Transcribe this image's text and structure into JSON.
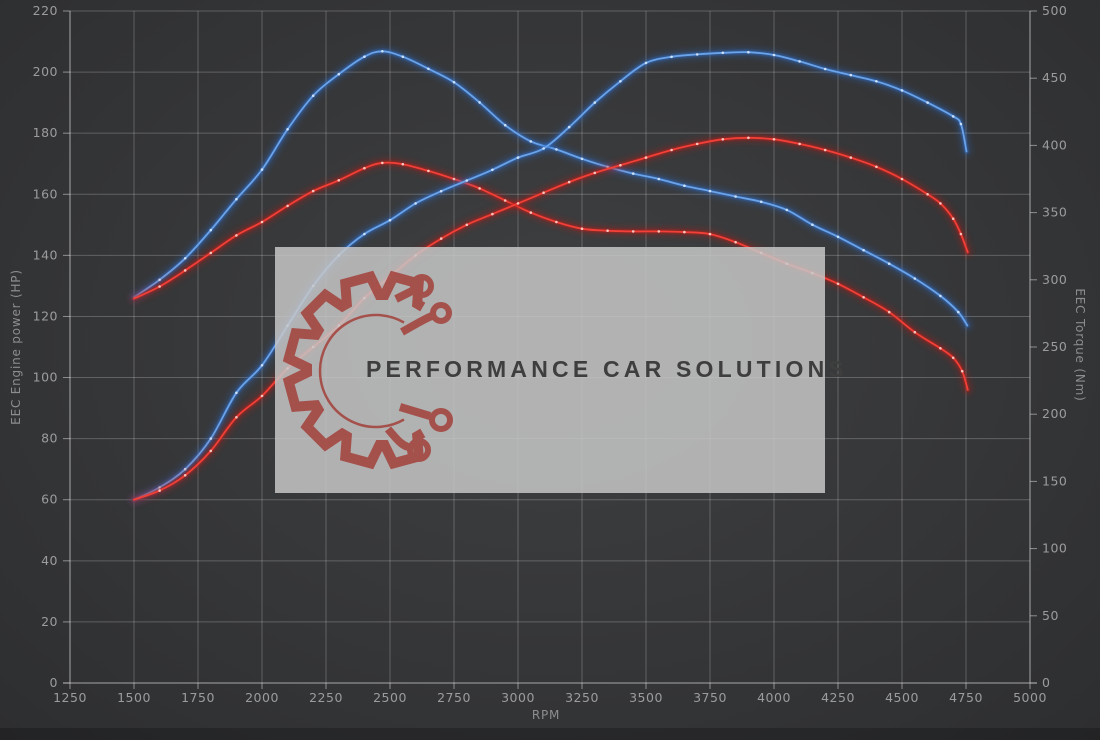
{
  "chart_data": {
    "type": "line",
    "title": "",
    "xlabel": "RPM",
    "x_axis": {
      "min": 1250,
      "max": 5000,
      "ticks": [
        1250,
        1500,
        1750,
        2000,
        2250,
        2500,
        2750,
        3000,
        3250,
        3500,
        3750,
        4000,
        4250,
        4500,
        4750,
        5000
      ]
    },
    "left_axis": {
      "label": "EEC Engine power (HP)",
      "min": 0,
      "max": 220,
      "ticks": [
        0,
        20,
        40,
        60,
        80,
        100,
        120,
        140,
        160,
        180,
        200,
        220
      ]
    },
    "right_axis": {
      "label": "EEC Torque (Nm)",
      "min": 0,
      "max": 500,
      "ticks": [
        0,
        50,
        100,
        150,
        200,
        250,
        300,
        350,
        400,
        450,
        500
      ]
    },
    "grid": true,
    "legend": "none",
    "series": [
      {
        "name": "torque-blue-run",
        "unit": "Nm",
        "axis": "right",
        "color": "#6ba3e8",
        "glow": "#2f6fd0",
        "dot": "#d5e7fb",
        "points": [
          [
            1500,
            287
          ],
          [
            1600,
            300
          ],
          [
            1700,
            316
          ],
          [
            1800,
            337
          ],
          [
            1900,
            360
          ],
          [
            2000,
            382
          ],
          [
            2100,
            412
          ],
          [
            2200,
            437
          ],
          [
            2300,
            453
          ],
          [
            2400,
            466
          ],
          [
            2470,
            470
          ],
          [
            2550,
            466
          ],
          [
            2650,
            457
          ],
          [
            2750,
            447
          ],
          [
            2850,
            432
          ],
          [
            2950,
            415
          ],
          [
            3050,
            403
          ],
          [
            3150,
            397
          ],
          [
            3250,
            390
          ],
          [
            3350,
            384
          ],
          [
            3450,
            379
          ],
          [
            3550,
            375
          ],
          [
            3650,
            370
          ],
          [
            3750,
            366
          ],
          [
            3850,
            362
          ],
          [
            3950,
            358
          ],
          [
            4050,
            352
          ],
          [
            4150,
            341
          ],
          [
            4250,
            332
          ],
          [
            4350,
            322
          ],
          [
            4450,
            312
          ],
          [
            4550,
            301
          ],
          [
            4650,
            288
          ],
          [
            4720,
            276
          ],
          [
            4755,
            266
          ]
        ]
      },
      {
        "name": "torque-red-run",
        "unit": "Nm",
        "axis": "right",
        "color": "#f04038",
        "glow": "#c01d18",
        "dot": "#ffd0ca",
        "points": [
          [
            1500,
            286
          ],
          [
            1600,
            295
          ],
          [
            1700,
            307
          ],
          [
            1800,
            320
          ],
          [
            1900,
            333
          ],
          [
            2000,
            343
          ],
          [
            2100,
            355
          ],
          [
            2200,
            366
          ],
          [
            2300,
            374
          ],
          [
            2400,
            383
          ],
          [
            2470,
            387
          ],
          [
            2550,
            386
          ],
          [
            2650,
            381
          ],
          [
            2750,
            375
          ],
          [
            2850,
            368
          ],
          [
            2950,
            359
          ],
          [
            3050,
            350
          ],
          [
            3150,
            343
          ],
          [
            3250,
            338
          ],
          [
            3350,
            336.5
          ],
          [
            3450,
            336
          ],
          [
            3550,
            336
          ],
          [
            3650,
            335.5
          ],
          [
            3750,
            334
          ],
          [
            3850,
            328
          ],
          [
            3950,
            320
          ],
          [
            4050,
            312
          ],
          [
            4150,
            305
          ],
          [
            4250,
            297
          ],
          [
            4350,
            287
          ],
          [
            4450,
            276
          ],
          [
            4550,
            261
          ],
          [
            4650,
            249
          ],
          [
            4700,
            242
          ],
          [
            4735,
            232
          ],
          [
            4757,
            218
          ]
        ]
      },
      {
        "name": "power-blue-run",
        "unit": "HP",
        "axis": "left",
        "color": "#6ba3e8",
        "glow": "#2f6fd0",
        "dot": "#d5e7fb",
        "points": [
          [
            1500,
            60
          ],
          [
            1600,
            64
          ],
          [
            1700,
            70
          ],
          [
            1800,
            80
          ],
          [
            1900,
            95
          ],
          [
            2000,
            104
          ],
          [
            2100,
            117
          ],
          [
            2200,
            130
          ],
          [
            2300,
            140
          ],
          [
            2400,
            147
          ],
          [
            2500,
            151.5
          ],
          [
            2600,
            157
          ],
          [
            2700,
            161
          ],
          [
            2800,
            164.5
          ],
          [
            2900,
            168
          ],
          [
            3000,
            172
          ],
          [
            3100,
            175
          ],
          [
            3200,
            182
          ],
          [
            3300,
            190
          ],
          [
            3400,
            197
          ],
          [
            3500,
            203
          ],
          [
            3600,
            205
          ],
          [
            3700,
            205.8
          ],
          [
            3800,
            206.3
          ],
          [
            3900,
            206.5
          ],
          [
            4000,
            205.6
          ],
          [
            4100,
            203.5
          ],
          [
            4200,
            201
          ],
          [
            4300,
            199
          ],
          [
            4400,
            197
          ],
          [
            4500,
            194
          ],
          [
            4600,
            190
          ],
          [
            4700,
            185.5
          ],
          [
            4730,
            183
          ],
          [
            4752,
            174
          ]
        ]
      },
      {
        "name": "power-red-run",
        "unit": "HP",
        "axis": "left",
        "color": "#f04038",
        "glow": "#c01d18",
        "dot": "#ffd0ca",
        "points": [
          [
            1500,
            60
          ],
          [
            1600,
            63
          ],
          [
            1700,
            68
          ],
          [
            1800,
            76
          ],
          [
            1900,
            87
          ],
          [
            2000,
            94
          ],
          [
            2100,
            103
          ],
          [
            2200,
            110
          ],
          [
            2300,
            117
          ],
          [
            2400,
            126
          ],
          [
            2500,
            133
          ],
          [
            2600,
            140
          ],
          [
            2700,
            145.5
          ],
          [
            2800,
            150
          ],
          [
            2900,
            153.5
          ],
          [
            3000,
            157
          ],
          [
            3100,
            160.5
          ],
          [
            3200,
            164
          ],
          [
            3300,
            167
          ],
          [
            3400,
            169.5
          ],
          [
            3500,
            172
          ],
          [
            3600,
            174.5
          ],
          [
            3700,
            176.5
          ],
          [
            3800,
            178
          ],
          [
            3900,
            178.5
          ],
          [
            4000,
            178
          ],
          [
            4100,
            176.5
          ],
          [
            4200,
            174.5
          ],
          [
            4300,
            172
          ],
          [
            4400,
            169
          ],
          [
            4500,
            165
          ],
          [
            4600,
            160
          ],
          [
            4650,
            157
          ],
          [
            4700,
            152
          ],
          [
            4730,
            147
          ],
          [
            4757,
            141
          ]
        ]
      }
    ],
    "watermark": {
      "text": "PERFORMANCE CAR SOLUTIONS"
    }
  },
  "colors": {
    "background_center": "#3e4042",
    "background_edge": "#2d2e30",
    "grid": "rgba(255,255,255,0.22)",
    "axis": "rgba(255,255,255,0.45)",
    "tick_text": "#9c9c9c",
    "watermark_box": "#c7c7c7",
    "watermark_logo": "#a23a33",
    "watermark_text": "#3e3e3e"
  }
}
